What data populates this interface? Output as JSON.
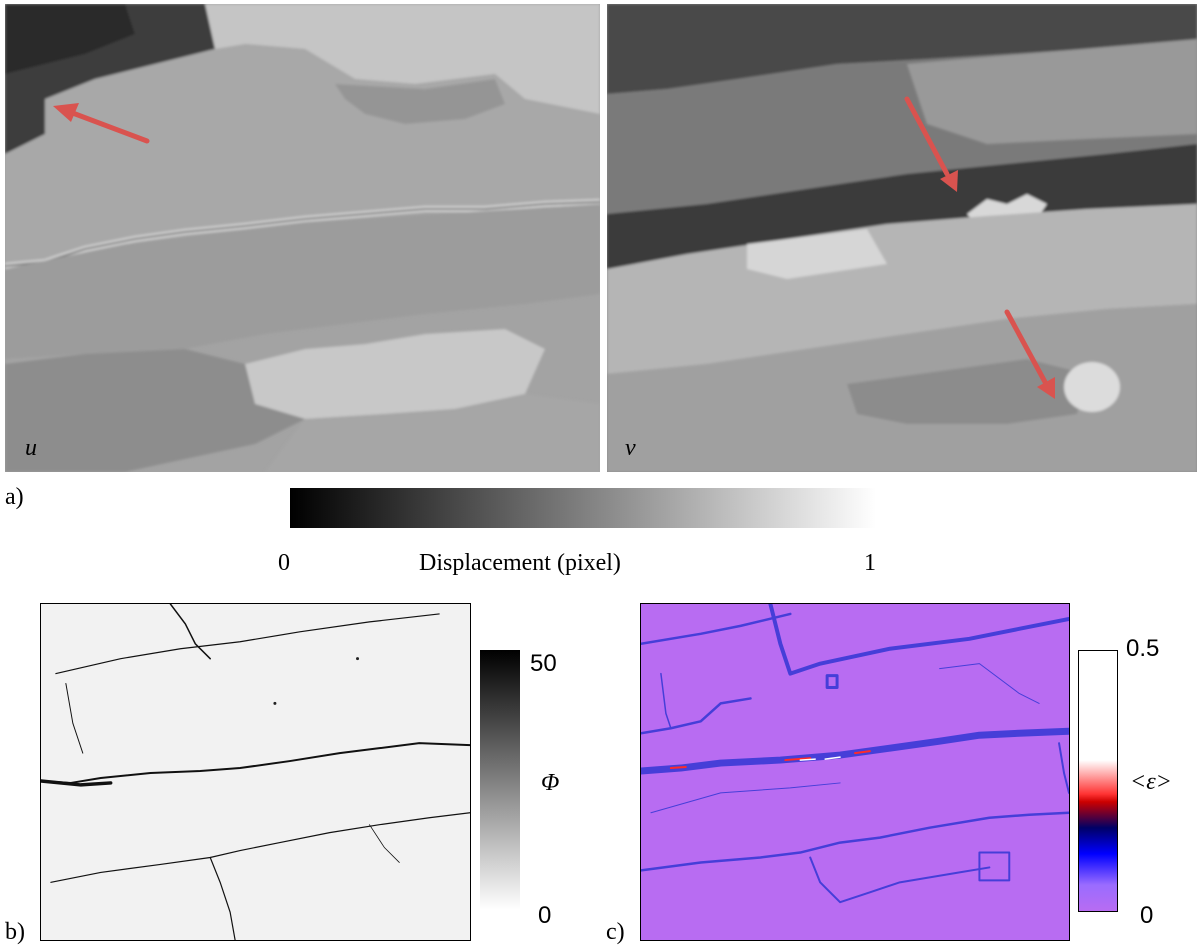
{
  "panel_a": {
    "label": "a)",
    "u_label": "u",
    "v_label": "v",
    "colorbar": {
      "min_label": "0",
      "max_label": "1",
      "title": "Displacement (pixel)",
      "gradient_from": "#000000",
      "gradient_to": "#ffffff"
    },
    "arrow_color": "#d9534f"
  },
  "panel_b": {
    "label": "b)",
    "colorbar": {
      "max_label": "50",
      "min_label": "0",
      "symbol": "Φ"
    }
  },
  "panel_c": {
    "label": "c)",
    "background_color": "#b86cf2",
    "crack_color": "#3a3ad6",
    "colorbar": {
      "max_label": "0.5",
      "min_label": "0",
      "symbol": "<ε>",
      "colors": [
        "#ffffff",
        "#ff0000",
        "#000080",
        "#0000ff",
        "#b86cf2"
      ]
    }
  }
}
